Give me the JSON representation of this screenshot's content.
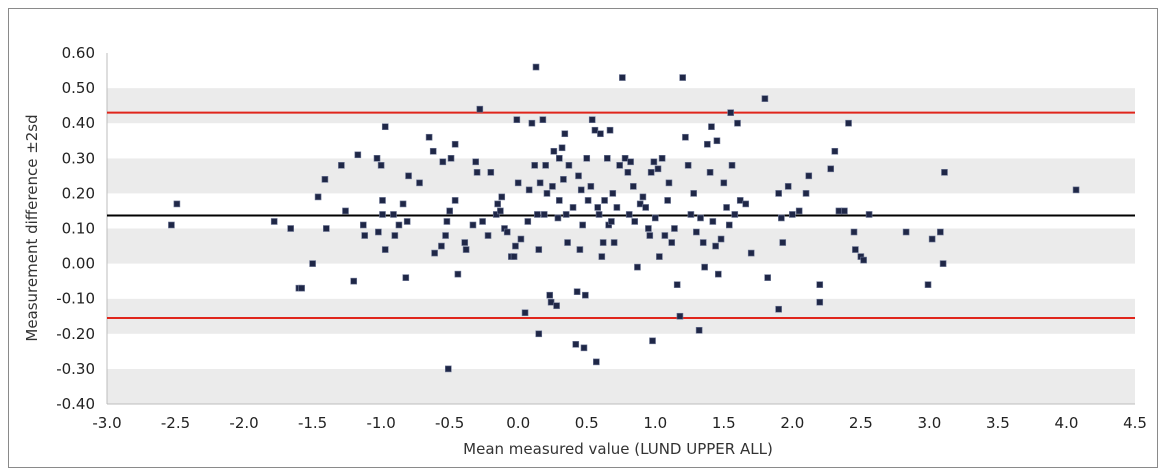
{
  "chart_data": {
    "type": "scatter",
    "title": "",
    "xlabel": "Mean measured value (LUND UPPER ALL)",
    "ylabel": "Measurement difference ±2sd",
    "xlim": [
      -3.0,
      4.5
    ],
    "ylim": [
      -0.4,
      0.6
    ],
    "x_ticks": [
      "-3.0",
      "-2.5",
      "-2.0",
      "-1.5",
      "-1.0",
      "-0.5",
      "0.0",
      "0.5",
      "1.0",
      "1.5",
      "2.0",
      "2.5",
      "3.0",
      "3.5",
      "4.0",
      "4.5"
    ],
    "y_ticks": [
      "-0.40",
      "-0.30",
      "-0.20",
      "-0.10",
      "0.00",
      "0.10",
      "0.20",
      "0.30",
      "0.40",
      "0.50",
      "0.60"
    ],
    "grid": "horizontal alternating bands",
    "band_color": "#ebebeb",
    "marker_color": "#1f2747",
    "reference_lines": [
      {
        "value": 0.43,
        "color": "#e0251b"
      },
      {
        "value": 0.137,
        "color": "#000000"
      },
      {
        "value": -0.155,
        "color": "#e0251b"
      }
    ],
    "points": [
      [
        -2.53,
        0.11
      ],
      [
        -2.49,
        0.17
      ],
      [
        -1.78,
        0.12
      ],
      [
        -1.66,
        0.1
      ],
      [
        -1.6,
        -0.07
      ],
      [
        -1.58,
        -0.07
      ],
      [
        -1.5,
        0.0
      ],
      [
        -1.46,
        0.19
      ],
      [
        -1.41,
        0.24
      ],
      [
        -1.4,
        0.1
      ],
      [
        -1.29,
        0.28
      ],
      [
        -1.26,
        0.15
      ],
      [
        -1.2,
        -0.05
      ],
      [
        -1.17,
        0.31
      ],
      [
        -1.13,
        0.11
      ],
      [
        -1.12,
        0.08
      ],
      [
        -1.03,
        0.3
      ],
      [
        -1.02,
        0.09
      ],
      [
        -1.0,
        0.28
      ],
      [
        -0.99,
        0.18
      ],
      [
        -0.99,
        0.14
      ],
      [
        -0.97,
        0.04
      ],
      [
        -0.97,
        0.39
      ],
      [
        -0.91,
        0.14
      ],
      [
        -0.9,
        0.08
      ],
      [
        -0.87,
        0.11
      ],
      [
        -0.84,
        0.17
      ],
      [
        -0.82,
        -0.04
      ],
      [
        -0.81,
        0.12
      ],
      [
        -0.8,
        0.25
      ],
      [
        -0.72,
        0.23
      ],
      [
        -0.65,
        0.36
      ],
      [
        -0.62,
        0.32
      ],
      [
        -0.61,
        0.03
      ],
      [
        -0.56,
        0.05
      ],
      [
        -0.55,
        0.29
      ],
      [
        -0.53,
        0.08
      ],
      [
        -0.52,
        0.12
      ],
      [
        -0.51,
        -0.3
      ],
      [
        -0.5,
        0.15
      ],
      [
        -0.49,
        0.3
      ],
      [
        -0.46,
        0.18
      ],
      [
        -0.46,
        0.34
      ],
      [
        -0.44,
        -0.03
      ],
      [
        -0.39,
        0.06
      ],
      [
        -0.38,
        0.04
      ],
      [
        -0.33,
        0.11
      ],
      [
        -0.31,
        0.29
      ],
      [
        -0.3,
        0.26
      ],
      [
        -0.28,
        0.44
      ],
      [
        -0.26,
        0.12
      ],
      [
        -0.22,
        0.08
      ],
      [
        -0.2,
        0.26
      ],
      [
        -0.16,
        0.14
      ],
      [
        -0.15,
        0.17
      ],
      [
        -0.13,
        0.15
      ],
      [
        -0.12,
        0.19
      ],
      [
        -0.1,
        0.1
      ],
      [
        -0.08,
        0.09
      ],
      [
        -0.05,
        0.02
      ],
      [
        -0.03,
        0.02
      ],
      [
        -0.02,
        0.05
      ],
      [
        -0.01,
        0.41
      ],
      [
        0.0,
        0.23
      ],
      [
        0.02,
        0.07
      ],
      [
        0.05,
        -0.14
      ],
      [
        0.07,
        0.12
      ],
      [
        0.08,
        0.21
      ],
      [
        0.1,
        0.4
      ],
      [
        0.12,
        0.28
      ],
      [
        0.13,
        0.56
      ],
      [
        0.14,
        0.14
      ],
      [
        0.15,
        0.04
      ],
      [
        0.15,
        -0.2
      ],
      [
        0.16,
        0.23
      ],
      [
        0.18,
        0.41
      ],
      [
        0.19,
        0.14
      ],
      [
        0.2,
        0.28
      ],
      [
        0.21,
        0.2
      ],
      [
        0.23,
        -0.09
      ],
      [
        0.24,
        -0.11
      ],
      [
        0.25,
        0.22
      ],
      [
        0.26,
        0.32
      ],
      [
        0.28,
        -0.12
      ],
      [
        0.29,
        0.13
      ],
      [
        0.3,
        0.3
      ],
      [
        0.3,
        0.18
      ],
      [
        0.32,
        0.33
      ],
      [
        0.33,
        0.24
      ],
      [
        0.34,
        0.37
      ],
      [
        0.35,
        0.14
      ],
      [
        0.36,
        0.06
      ],
      [
        0.37,
        0.28
      ],
      [
        0.4,
        0.16
      ],
      [
        0.42,
        -0.23
      ],
      [
        0.43,
        -0.08
      ],
      [
        0.44,
        0.25
      ],
      [
        0.45,
        0.04
      ],
      [
        0.46,
        0.21
      ],
      [
        0.47,
        0.11
      ],
      [
        0.48,
        -0.24
      ],
      [
        0.49,
        -0.09
      ],
      [
        0.5,
        0.3
      ],
      [
        0.51,
        0.18
      ],
      [
        0.53,
        0.22
      ],
      [
        0.54,
        0.41
      ],
      [
        0.56,
        0.38
      ],
      [
        0.57,
        -0.28
      ],
      [
        0.58,
        0.16
      ],
      [
        0.59,
        0.14
      ],
      [
        0.6,
        0.37
      ],
      [
        0.61,
        0.02
      ],
      [
        0.62,
        0.06
      ],
      [
        0.63,
        0.18
      ],
      [
        0.65,
        0.3
      ],
      [
        0.66,
        0.11
      ],
      [
        0.67,
        0.38
      ],
      [
        0.68,
        0.12
      ],
      [
        0.69,
        0.2
      ],
      [
        0.7,
        0.06
      ],
      [
        0.72,
        0.16
      ],
      [
        0.74,
        0.28
      ],
      [
        0.76,
        0.53
      ],
      [
        0.78,
        0.3
      ],
      [
        0.8,
        0.26
      ],
      [
        0.81,
        0.14
      ],
      [
        0.82,
        0.29
      ],
      [
        0.84,
        0.22
      ],
      [
        0.85,
        0.12
      ],
      [
        0.87,
        -0.01
      ],
      [
        0.89,
        0.17
      ],
      [
        0.91,
        0.19
      ],
      [
        0.93,
        0.16
      ],
      [
        0.95,
        0.1
      ],
      [
        0.96,
        0.08
      ],
      [
        0.97,
        0.26
      ],
      [
        0.98,
        -0.22
      ],
      [
        0.99,
        0.29
      ],
      [
        1.0,
        0.13
      ],
      [
        1.02,
        0.27
      ],
      [
        1.03,
        0.02
      ],
      [
        1.05,
        0.3
      ],
      [
        1.07,
        0.08
      ],
      [
        1.09,
        0.18
      ],
      [
        1.1,
        0.23
      ],
      [
        1.12,
        0.06
      ],
      [
        1.14,
        0.1
      ],
      [
        1.16,
        -0.06
      ],
      [
        1.18,
        -0.15
      ],
      [
        1.2,
        0.53
      ],
      [
        1.22,
        0.36
      ],
      [
        1.24,
        0.28
      ],
      [
        1.26,
        0.14
      ],
      [
        1.28,
        0.2
      ],
      [
        1.3,
        0.09
      ],
      [
        1.32,
        -0.19
      ],
      [
        1.33,
        0.13
      ],
      [
        1.35,
        0.06
      ],
      [
        1.36,
        -0.01
      ],
      [
        1.38,
        0.34
      ],
      [
        1.4,
        0.26
      ],
      [
        1.41,
        0.39
      ],
      [
        1.42,
        0.12
      ],
      [
        1.44,
        0.05
      ],
      [
        1.45,
        0.35
      ],
      [
        1.46,
        -0.03
      ],
      [
        1.48,
        0.07
      ],
      [
        1.5,
        0.23
      ],
      [
        1.52,
        0.16
      ],
      [
        1.54,
        0.11
      ],
      [
        1.55,
        0.43
      ],
      [
        1.56,
        0.28
      ],
      [
        1.58,
        0.14
      ],
      [
        1.6,
        0.4
      ],
      [
        1.62,
        0.18
      ],
      [
        1.66,
        0.17
      ],
      [
        1.7,
        0.03
      ],
      [
        1.8,
        0.47
      ],
      [
        1.82,
        -0.04
      ],
      [
        1.9,
        0.2
      ],
      [
        1.9,
        -0.13
      ],
      [
        1.92,
        0.13
      ],
      [
        1.93,
        0.06
      ],
      [
        1.97,
        0.22
      ],
      [
        2.0,
        0.14
      ],
      [
        2.05,
        0.15
      ],
      [
        2.1,
        0.2
      ],
      [
        2.12,
        0.25
      ],
      [
        2.2,
        -0.06
      ],
      [
        2.2,
        -0.11
      ],
      [
        2.28,
        0.27
      ],
      [
        2.31,
        0.32
      ],
      [
        2.34,
        0.15
      ],
      [
        2.38,
        0.15
      ],
      [
        2.41,
        0.4
      ],
      [
        2.45,
        0.09
      ],
      [
        2.46,
        0.04
      ],
      [
        2.5,
        0.02
      ],
      [
        2.52,
        0.01
      ],
      [
        2.56,
        0.14
      ],
      [
        2.83,
        0.09
      ],
      [
        2.99,
        -0.06
      ],
      [
        3.02,
        0.07
      ],
      [
        3.08,
        0.09
      ],
      [
        3.1,
        0.0
      ],
      [
        3.11,
        0.26
      ],
      [
        4.07,
        0.21
      ]
    ]
  }
}
